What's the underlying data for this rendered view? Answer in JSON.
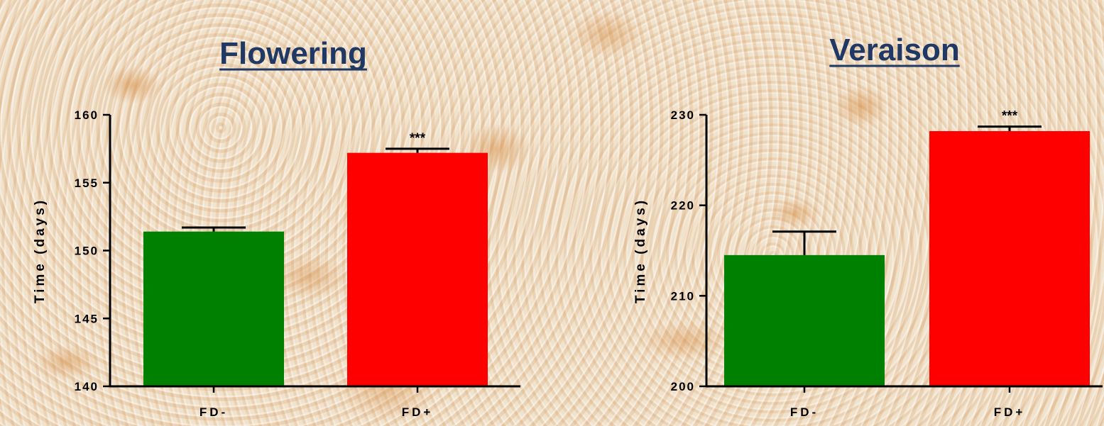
{
  "chart_data": [
    {
      "type": "bar",
      "title": "Flowering",
      "ylabel": "Time (days)",
      "xlabel": "",
      "categories": [
        "FD-",
        "FD+"
      ],
      "values": [
        151.4,
        157.2
      ],
      "errors": [
        0.3,
        0.3
      ],
      "significance": [
        "",
        "***"
      ],
      "ylim": [
        140,
        160
      ],
      "yticks": [
        140,
        145,
        150,
        155,
        160
      ],
      "colors": [
        "#008000",
        "#ff0000"
      ],
      "grid": false
    },
    {
      "type": "bar",
      "title": "Veraison",
      "ylabel": "Time (days)",
      "xlabel": "",
      "categories": [
        "FD-",
        "FD+"
      ],
      "values": [
        214.5,
        228.2
      ],
      "errors": [
        2.6,
        0.5
      ],
      "significance": [
        "",
        "***"
      ],
      "ylim": [
        200,
        230
      ],
      "yticks": [
        200,
        210,
        220,
        230
      ],
      "colors": [
        "#008000",
        "#ff0000"
      ],
      "grid": false
    }
  ]
}
